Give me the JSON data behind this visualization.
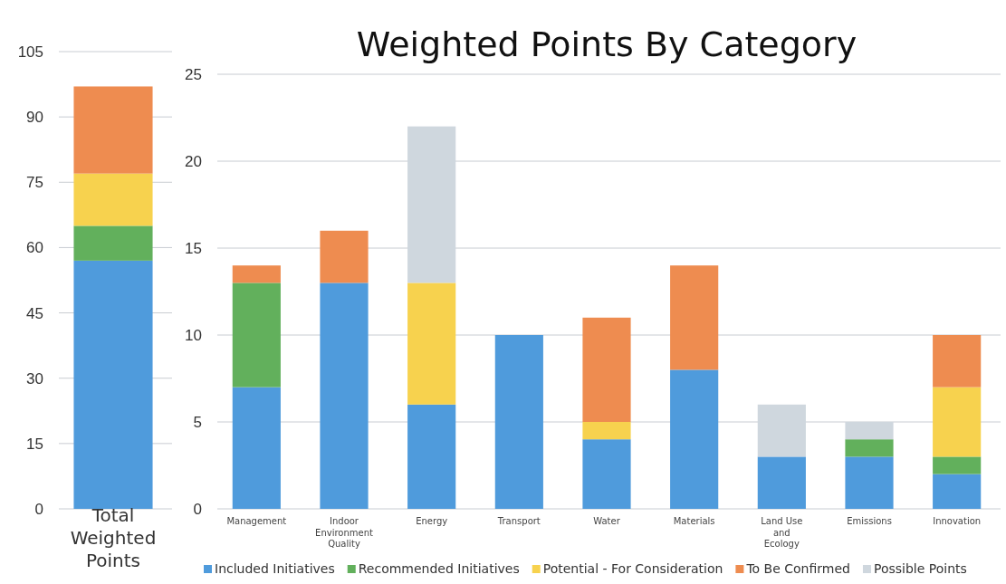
{
  "chart_data": [
    {
      "type": "bar",
      "stacked": true,
      "categories": [
        "Total Weighted Points"
      ],
      "ylim": [
        0,
        105
      ],
      "yticks": [
        0,
        15,
        30,
        45,
        60,
        75,
        90,
        105
      ],
      "grid": "y",
      "legend": false,
      "series": [
        {
          "color": "#4f9bdc",
          "values": [
            57
          ]
        },
        {
          "color": "#62b05c",
          "values": [
            8
          ]
        },
        {
          "color": "#f7d24e",
          "values": [
            12
          ]
        },
        {
          "color": "#ee8c50",
          "values": [
            20
          ]
        }
      ]
    },
    {
      "type": "bar",
      "stacked": true,
      "title": "Weighted Points By Category",
      "categories": [
        "Management",
        "Indoor Environment Quality",
        "Energy",
        "Transport",
        "Water",
        "Materials",
        "Land Use and Ecology",
        "Emissions",
        "Innovation"
      ],
      "ylim": [
        0,
        25
      ],
      "yticks": [
        0,
        5,
        10,
        15,
        20,
        25
      ],
      "grid": "y",
      "legend": "bottom",
      "series": [
        {
          "name": "Included Initiatives",
          "color": "#4f9bdc",
          "values": [
            7,
            13,
            6,
            10,
            4,
            8,
            3,
            3,
            2
          ]
        },
        {
          "name": "Recommended Initiatives",
          "color": "#62b05c",
          "values": [
            6,
            0,
            0,
            0,
            0,
            0,
            0,
            1,
            1
          ]
        },
        {
          "name": "Potential - For Consideration",
          "color": "#f7d24e",
          "values": [
            0,
            0,
            7,
            0,
            1,
            0,
            0,
            0,
            4
          ]
        },
        {
          "name": "To Be Confirmed",
          "color": "#ee8c50",
          "values": [
            1,
            3,
            0,
            0,
            6,
            6,
            0,
            0,
            3
          ]
        },
        {
          "name": "Possible Points",
          "color": "#cfd7de",
          "values": [
            0,
            0,
            9,
            0,
            0,
            0,
            3,
            1,
            0
          ]
        }
      ]
    }
  ]
}
